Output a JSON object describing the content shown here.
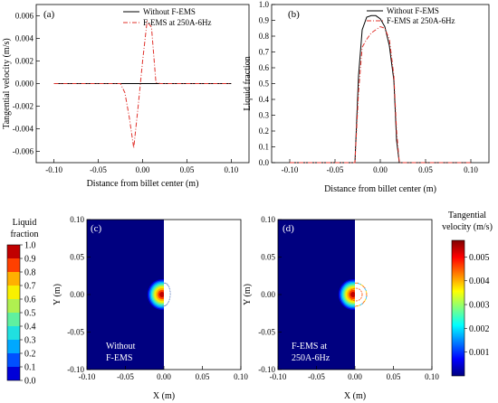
{
  "chart_data": [
    {
      "id": "a",
      "type": "line",
      "panel_label": "(a)",
      "xlabel": "Distance from billet center (m)",
      "ylabel": "Tangential velocity (m/s)",
      "xlim": [
        -0.12,
        0.12
      ],
      "ylim": [
        -0.007,
        0.007
      ],
      "xticks": [
        -0.1,
        -0.05,
        0.0,
        0.05,
        0.1
      ],
      "xtick_labels": [
        "-0.10",
        "-0.05",
        "0.00",
        "0.05",
        "0.10"
      ],
      "yticks": [
        -0.006,
        -0.004,
        -0.002,
        0.0,
        0.002,
        0.004,
        0.006
      ],
      "ytick_labels": [
        "-0.006",
        "-0.004",
        "-0.002",
        "0.000",
        "0.002",
        "0.004",
        "0.006"
      ],
      "legend_position": "top-right",
      "series": [
        {
          "name": "Without F-EMS",
          "color": "#000000",
          "dash": "solid",
          "x": [
            -0.1,
            0.1
          ],
          "y": [
            0,
            0
          ]
        },
        {
          "name": "F-EMS at 250A-6Hz",
          "color": "#e0302a",
          "dash": "dashdot",
          "x": [
            -0.1,
            -0.025,
            -0.02,
            -0.015,
            -0.01,
            -0.005,
            0.0,
            0.005,
            0.01,
            0.015,
            0.02,
            0.1
          ],
          "y": [
            0,
            0,
            -0.0008,
            -0.003,
            -0.0057,
            -0.002,
            0.002,
            0.0055,
            0.005,
            0.0001,
            0,
            0
          ]
        }
      ]
    },
    {
      "id": "b",
      "type": "line",
      "panel_label": "(b)",
      "xlabel": "Distance from billet center (m)",
      "ylabel": "Liquid fraction",
      "xlim": [
        -0.12,
        0.12
      ],
      "ylim": [
        0,
        1.0
      ],
      "xticks": [
        -0.1,
        -0.05,
        0.0,
        0.05,
        0.1
      ],
      "xtick_labels": [
        "-0.10",
        "-0.05",
        "0.00",
        "0.05",
        "0.10"
      ],
      "yticks": [
        0.0,
        0.1,
        0.2,
        0.3,
        0.4,
        0.5,
        0.6,
        0.7,
        0.8,
        0.9,
        1.0
      ],
      "ytick_labels": [
        "0.0",
        "0.1",
        "0.2",
        "0.3",
        "0.4",
        "0.5",
        "0.6",
        "0.7",
        "0.8",
        "0.9",
        "1.0"
      ],
      "legend_position": "top-right",
      "series": [
        {
          "name": "Without F-EMS",
          "color": "#000000",
          "dash": "solid",
          "x": [
            -0.1,
            -0.028,
            -0.024,
            -0.02,
            -0.015,
            -0.01,
            -0.005,
            0.0,
            0.005,
            0.01,
            0.015,
            0.018,
            0.021,
            0.1
          ],
          "y": [
            0,
            0,
            0.55,
            0.84,
            0.92,
            0.93,
            0.93,
            0.91,
            0.86,
            0.74,
            0.52,
            0.14,
            0,
            0
          ]
        },
        {
          "name": "F-EMS at 250A-6Hz",
          "color": "#e0302a",
          "dash": "dashdot",
          "x": [
            -0.1,
            -0.028,
            -0.024,
            -0.02,
            -0.015,
            -0.01,
            -0.005,
            0.0,
            0.005,
            0.01,
            0.015,
            0.018,
            0.021,
            0.1
          ],
          "y": [
            0,
            0,
            0.45,
            0.73,
            0.78,
            0.82,
            0.84,
            0.86,
            0.85,
            0.78,
            0.55,
            0.2,
            0,
            0
          ]
        }
      ]
    },
    {
      "id": "c",
      "type": "heatmap",
      "panel_label": "(c)",
      "annotation": [
        "Without",
        "F-EMS"
      ],
      "xlabel": "X (m)",
      "ylabel": "Y (m)",
      "xlim": [
        -0.1,
        0.1
      ],
      "ylim": [
        -0.1,
        0.1
      ],
      "xticks": [
        -0.1,
        -0.05,
        0.0,
        0.05,
        0.1
      ],
      "xtick_labels": [
        "-0.10",
        "-0.05",
        "0.00",
        "0.05",
        "0.10"
      ],
      "yticks": [
        -0.1,
        -0.05,
        0.0,
        0.05,
        0.1
      ],
      "ytick_labels": [
        "-0.10",
        "-0.05",
        "0.00",
        "0.05",
        "0.10"
      ],
      "liquid_pool_radius_m": 0.02,
      "vector_ring_radius_m": 0.015
    },
    {
      "id": "d",
      "type": "heatmap",
      "panel_label": "(d)",
      "annotation": [
        "F-EMS at",
        "250A-6Hz"
      ],
      "xlabel": "X (m)",
      "ylabel": "Y (m)",
      "xlim": [
        -0.1,
        0.1
      ],
      "ylim": [
        -0.1,
        0.1
      ],
      "xticks": [
        -0.1,
        -0.05,
        0.0,
        0.05,
        0.1
      ],
      "xtick_labels": [
        "-0.10",
        "-0.05",
        "0.00",
        "0.05",
        "0.10"
      ],
      "yticks": [
        -0.1,
        -0.05,
        0.0,
        0.05,
        0.1
      ],
      "ytick_labels": [
        "-0.10",
        "-0.05",
        "0.00",
        "0.05",
        "0.10"
      ],
      "liquid_pool_radius_m": 0.02,
      "vector_ring_radius_m": 0.015
    }
  ],
  "colorbars": {
    "liquid_fraction": {
      "title": [
        "Liquid",
        "fraction"
      ],
      "ticks": [
        0.0,
        0.1,
        0.2,
        0.3,
        0.4,
        0.5,
        0.6,
        0.7,
        0.8,
        0.9,
        1.0
      ],
      "tick_labels": [
        "0.0",
        "0.1",
        "0.2",
        "0.3",
        "0.4",
        "0.5",
        "0.6",
        "0.7",
        "0.8",
        "0.9",
        "1.0"
      ],
      "colors": [
        "#000080",
        "#0000d8",
        "#0050ff",
        "#00a8ff",
        "#20e0e0",
        "#60f0a0",
        "#b0f050",
        "#f8f000",
        "#ffb000",
        "#ff4000",
        "#c00000"
      ]
    },
    "tangential_velocity": {
      "title": [
        "Tangential",
        "velocity (m/s)"
      ],
      "ticks": [
        0.001,
        0.002,
        0.003,
        0.004,
        0.005
      ],
      "tick_labels": [
        "0.001",
        "0.002",
        "0.003",
        "0.004",
        "0.005"
      ],
      "range": [
        0.0,
        0.0057
      ],
      "colors": [
        "#000080",
        "#0000ff",
        "#0080ff",
        "#00ffff",
        "#80ff80",
        "#ffff00",
        "#ff8000",
        "#ff0000",
        "#800000"
      ]
    }
  }
}
